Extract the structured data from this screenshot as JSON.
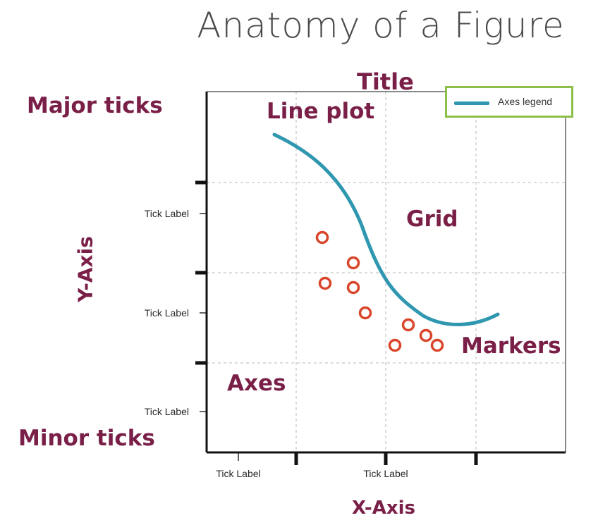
{
  "page": {
    "title": "Anatomy of a Figure"
  },
  "callouts": {
    "title": "Title",
    "major_ticks": "Major ticks",
    "line_plot": "Line plot",
    "grid": "Grid",
    "markers": "Markers",
    "axes": "Axes",
    "minor_ticks": "Minor ticks",
    "y_axis": "Y-Axis",
    "x_axis": "X-Axis"
  },
  "legend": {
    "label": "Axes legend",
    "line_color": "#2f97b0",
    "border_color": "#8cbf4a"
  },
  "tick_labels": {
    "y": [
      "Tick Label",
      "Tick Label",
      "Tick Label"
    ],
    "x": [
      "Tick Label",
      "Tick Label"
    ]
  },
  "colors": {
    "callout_text": "#7a2048",
    "line": "#2f97b0",
    "markers": "#d9452a",
    "grid": "#c8c8c8"
  }
}
